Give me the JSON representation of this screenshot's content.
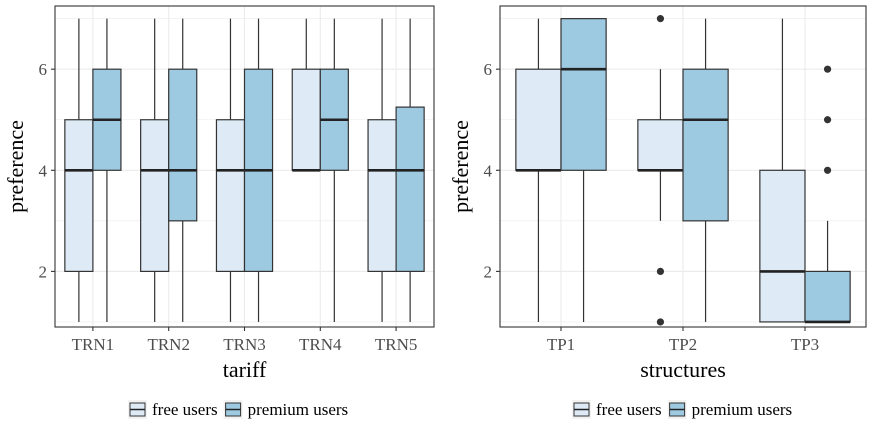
{
  "colors": {
    "free": "#deebf7",
    "premium": "#9ecae1",
    "stroke": "#333333",
    "panel_border": "#333333",
    "grid": "#ebebeb",
    "legend_key_bg": "#f2f2f2"
  },
  "chart_data": [
    {
      "type": "boxplot",
      "xlabel": "tariff",
      "ylabel": "preference",
      "ylim": [
        0.9,
        7.25
      ],
      "yticks": [
        2,
        4,
        6
      ],
      "grid": true,
      "legend_position": "bottom",
      "categories": [
        "TRN1",
        "TRN2",
        "TRN3",
        "TRN4",
        "TRN5"
      ],
      "series": [
        {
          "name": "free users",
          "color": "#deebf7",
          "boxes": [
            {
              "min": 1,
              "q1": 2,
              "median": 4,
              "q3": 5,
              "max": 7,
              "outliers": []
            },
            {
              "min": 1,
              "q1": 2,
              "median": 4,
              "q3": 5,
              "max": 7,
              "outliers": []
            },
            {
              "min": 1,
              "q1": 2,
              "median": 4,
              "q3": 5,
              "max": 7,
              "outliers": []
            },
            {
              "min": 4,
              "q1": 4,
              "median": 4,
              "q3": 6,
              "max": 7,
              "outliers": []
            },
            {
              "min": 1,
              "q1": 2,
              "median": 4,
              "q3": 5,
              "max": 7,
              "outliers": []
            }
          ]
        },
        {
          "name": "premium users",
          "color": "#9ecae1",
          "boxes": [
            {
              "min": 1,
              "q1": 4,
              "median": 5,
              "q3": 6,
              "max": 7,
              "outliers": []
            },
            {
              "min": 1,
              "q1": 3,
              "median": 4,
              "q3": 6,
              "max": 7,
              "outliers": []
            },
            {
              "min": 1,
              "q1": 2,
              "median": 4,
              "q3": 6,
              "max": 7,
              "outliers": []
            },
            {
              "min": 1,
              "q1": 4,
              "median": 5,
              "q3": 6,
              "max": 7,
              "outliers": []
            },
            {
              "min": 1,
              "q1": 2,
              "median": 4,
              "q3": 5.25,
              "max": 7,
              "outliers": []
            }
          ]
        }
      ]
    },
    {
      "type": "boxplot",
      "xlabel": "structures",
      "ylabel": "preference",
      "ylim": [
        0.9,
        7.25
      ],
      "yticks": [
        2,
        4,
        6
      ],
      "grid": true,
      "legend_position": "bottom",
      "categories": [
        "TP1",
        "TP2",
        "TP3"
      ],
      "series": [
        {
          "name": "free users",
          "color": "#deebf7",
          "boxes": [
            {
              "min": 1,
              "q1": 4,
              "median": 4,
              "q3": 6,
              "max": 7,
              "outliers": []
            },
            {
              "min": 3,
              "q1": 4,
              "median": 4,
              "q3": 5,
              "max": 6,
              "outliers": [
                7,
                2,
                1
              ]
            },
            {
              "min": 1,
              "q1": 1,
              "median": 2,
              "q3": 4,
              "max": 7,
              "outliers": []
            }
          ]
        },
        {
          "name": "premium users",
          "color": "#9ecae1",
          "boxes": [
            {
              "min": 1,
              "q1": 4,
              "median": 6,
              "q3": 7,
              "max": 7,
              "outliers": []
            },
            {
              "min": 1,
              "q1": 3,
              "median": 5,
              "q3": 6,
              "max": 7,
              "outliers": []
            },
            {
              "min": 1,
              "q1": 1,
              "median": 1,
              "q3": 2,
              "max": 3,
              "outliers": [
                4,
                5,
                6
              ]
            }
          ]
        }
      ]
    }
  ]
}
